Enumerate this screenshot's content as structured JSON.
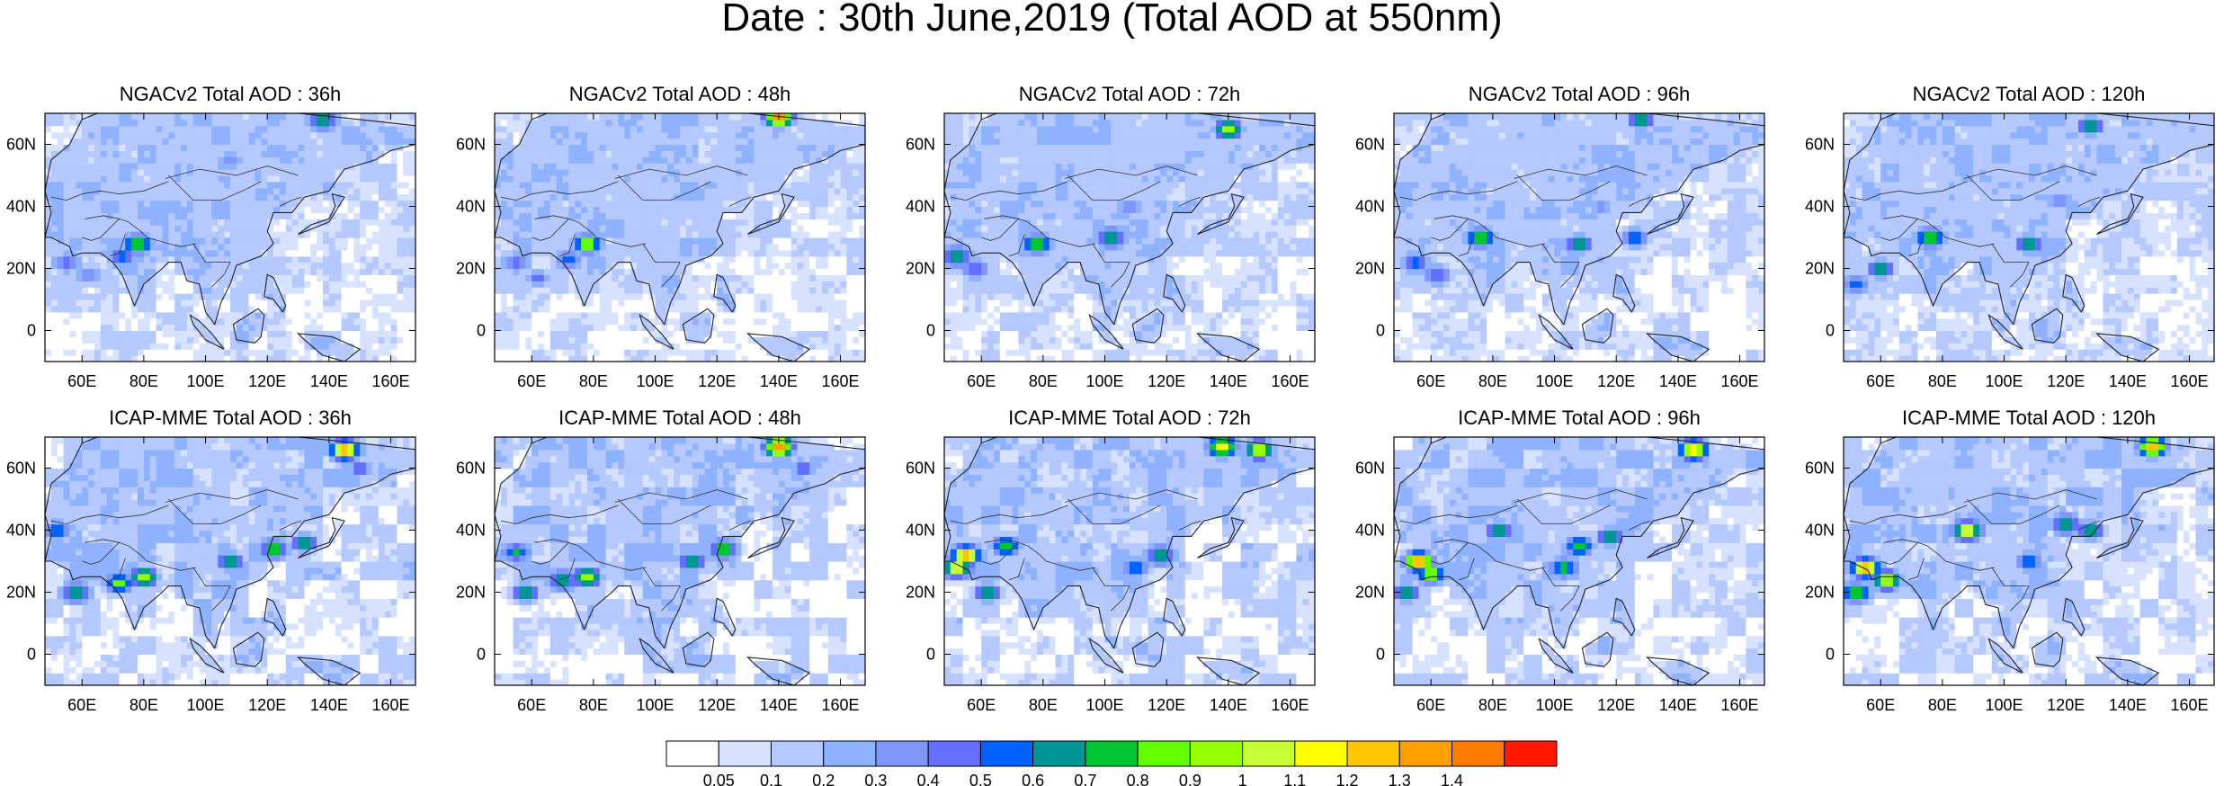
{
  "figure": {
    "title": "Date : 30th June,2019 (Total AOD at 550nm)"
  },
  "chart_data": {
    "type": "heatmap",
    "x_ticks": [
      "60E",
      "80E",
      "100E",
      "120E",
      "140E",
      "160E"
    ],
    "x_tick_values": [
      60,
      80,
      100,
      120,
      140,
      160
    ],
    "y_ticks": [
      "60N",
      "40N",
      "20N",
      "0"
    ],
    "y_tick_values": [
      60,
      40,
      20,
      0
    ],
    "xlim": [
      48,
      168
    ],
    "ylim": [
      -10,
      70
    ],
    "colorbar": {
      "labels": [
        "0.05",
        "0.1",
        "0.2",
        "0.3",
        "0.4",
        "0.5",
        "0.6",
        "0.7",
        "0.8",
        "0.9",
        "1",
        "1.1",
        "1.2",
        "1.3",
        "1.4"
      ],
      "colors": [
        "#ffffff",
        "#d6e2ff",
        "#b5c9ff",
        "#8eb2ff",
        "#7f96ff",
        "#6370ff",
        "#0063ff",
        "#009696",
        "#00c633",
        "#63ff00",
        "#96ff00",
        "#c6ff33",
        "#ffff00",
        "#ffc600",
        "#ffa000",
        "#ff7c00",
        "#ff1900"
      ]
    },
    "panels": [
      {
        "title": "NGACv2 Total AOD : 36h",
        "hotspots": [
          [
            78,
            28,
            0.9
          ],
          [
            73,
            24,
            0.6
          ],
          [
            55,
            22,
            0.5
          ],
          [
            62,
            18,
            0.45
          ],
          [
            138,
            68,
            0.8
          ],
          [
            108,
            55,
            0.35
          ]
        ]
      },
      {
        "title": "NGACv2 Total AOD : 48h",
        "hotspots": [
          [
            78,
            28,
            1.0
          ],
          [
            72,
            23,
            0.6
          ],
          [
            55,
            22,
            0.5
          ],
          [
            62,
            17,
            0.45
          ],
          [
            140,
            69,
            1.4
          ]
        ]
      },
      {
        "title": "NGACv2 Total AOD : 72h",
        "hotspots": [
          [
            78,
            28,
            0.9
          ],
          [
            52,
            24,
            0.8
          ],
          [
            58,
            20,
            0.55
          ],
          [
            102,
            30,
            0.8
          ],
          [
            140,
            65,
            1.0
          ],
          [
            108,
            40,
            0.4
          ]
        ]
      },
      {
        "title": "NGACv2 Total AOD : 96h",
        "hotspots": [
          [
            76,
            30,
            0.9
          ],
          [
            55,
            22,
            0.6
          ],
          [
            62,
            18,
            0.55
          ],
          [
            108,
            28,
            0.7
          ],
          [
            126,
            30,
            0.6
          ],
          [
            128,
            68,
            0.7
          ],
          [
            115,
            40,
            0.4
          ]
        ]
      },
      {
        "title": "NGACv2 Total AOD : 120h",
        "hotspots": [
          [
            76,
            30,
            0.9
          ],
          [
            60,
            20,
            0.7
          ],
          [
            52,
            15,
            0.6
          ],
          [
            108,
            28,
            0.7
          ],
          [
            128,
            66,
            0.7
          ],
          [
            118,
            42,
            0.4
          ]
        ]
      },
      {
        "title": "ICAP-MME Total AOD : 36h",
        "hotspots": [
          [
            80,
            25,
            1.0
          ],
          [
            72,
            23,
            0.85
          ],
          [
            58,
            20,
            0.8
          ],
          [
            108,
            30,
            0.7
          ],
          [
            122,
            34,
            0.85
          ],
          [
            132,
            36,
            0.7
          ],
          [
            52,
            40,
            0.6
          ],
          [
            145,
            66,
            1.4
          ],
          [
            150,
            60,
            0.5
          ]
        ]
      },
      {
        "title": "ICAP-MME Total AOD : 48h",
        "hotspots": [
          [
            78,
            25,
            1.0
          ],
          [
            70,
            24,
            0.8
          ],
          [
            58,
            20,
            0.75
          ],
          [
            55,
            33,
            0.7
          ],
          [
            112,
            30,
            0.75
          ],
          [
            122,
            34,
            0.85
          ],
          [
            140,
            67,
            1.4
          ],
          [
            148,
            60,
            0.5
          ]
        ]
      },
      {
        "title": "ICAP-MME Total AOD : 72h",
        "hotspots": [
          [
            55,
            32,
            1.4
          ],
          [
            52,
            28,
            1.2
          ],
          [
            68,
            35,
            0.8
          ],
          [
            62,
            20,
            0.7
          ],
          [
            118,
            32,
            0.8
          ],
          [
            110,
            28,
            0.6
          ],
          [
            138,
            67,
            1.2
          ],
          [
            150,
            66,
            1.1
          ]
        ]
      },
      {
        "title": "ICAP-MME Total AOD : 96h",
        "hotspots": [
          [
            56,
            30,
            1.4
          ],
          [
            60,
            26,
            1.0
          ],
          [
            52,
            20,
            0.7
          ],
          [
            82,
            40,
            0.7
          ],
          [
            108,
            35,
            0.8
          ],
          [
            118,
            38,
            0.7
          ],
          [
            103,
            28,
            0.8
          ],
          [
            145,
            66,
            1.3
          ]
        ]
      },
      {
        "title": "ICAP-MME Total AOD : 120h",
        "hotspots": [
          [
            55,
            28,
            1.4
          ],
          [
            62,
            24,
            1.1
          ],
          [
            52,
            20,
            0.9
          ],
          [
            88,
            40,
            1.2
          ],
          [
            120,
            42,
            0.8
          ],
          [
            128,
            40,
            0.7
          ],
          [
            108,
            30,
            0.6
          ],
          [
            148,
            67,
            1.3
          ]
        ]
      }
    ]
  }
}
